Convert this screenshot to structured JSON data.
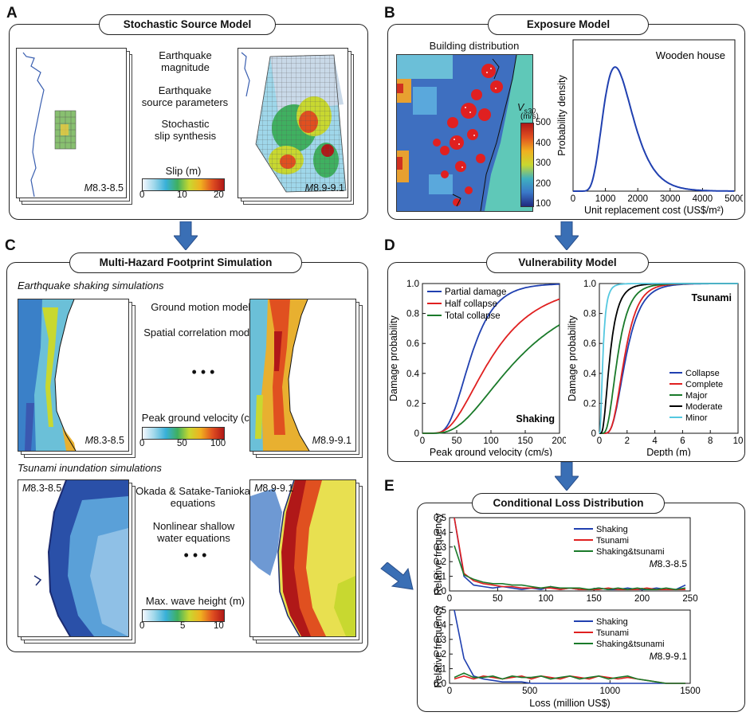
{
  "panels": {
    "A": {
      "letter": "A",
      "title": "Stochastic Source Model",
      "steps": [
        "Earthquake",
        "magnitude",
        "Earthquake",
        "source parameters",
        "Stochastic",
        "slip synthesis"
      ],
      "label_small": "8.3-8.5",
      "label_large": "8.9-9.1",
      "mag_prefix": "M",
      "colorbar": {
        "title": "Slip (m)",
        "ticks": [
          "0",
          "10",
          "20"
        ]
      }
    },
    "B": {
      "letter": "B",
      "title": "Exposure Model",
      "map_title": "Building distribution",
      "vs30_label": "V",
      "vs30_sub": "s30",
      "vs30_unit": "(m/s)",
      "vs30_ticks": [
        "500",
        "400",
        "300",
        "200",
        "100"
      ],
      "chart_title": "Wooden house"
    },
    "C": {
      "letter": "C",
      "title": "Multi-Hazard Footprint Simulation",
      "shaking_heading": "Earthquake shaking simulations",
      "shaking_steps": [
        "Ground motion models",
        "Spatial correlation models"
      ],
      "dots": "• • •",
      "pgv_colorbar": {
        "title": "Peak ground velocity (cm/s)",
        "ticks": [
          "0",
          "50",
          "100"
        ]
      },
      "tsunami_heading": "Tsunami inundation simulations",
      "tsunami_steps": [
        "Okada & Satake-Tanioka",
        "equations",
        "Nonlinear shallow",
        "water equations"
      ],
      "wave_colorbar": {
        "title": "Max. wave height (m)",
        "ticks": [
          "0",
          "5",
          "10"
        ]
      },
      "mag_prefix": "M",
      "label_small": "8.3-8.5",
      "label_large": "8.9-9.1"
    },
    "D": {
      "letter": "D",
      "title": "Vulnerability Model",
      "shaking_tag": "Shaking",
      "tsunami_tag": "Tsunami"
    },
    "E": {
      "letter": "E",
      "title": "Conditional Loss Distribution",
      "mag_prefix": "M",
      "label_small": "8.3-8.5",
      "label_large": "8.9-9.1"
    }
  },
  "colors": {
    "shaking": "#2040b0",
    "tsunami": "#e02020",
    "combined": "#1a7a2a",
    "moderate": "#000000",
    "minor": "#55c8e0",
    "arrow": "#3a6fb5"
  },
  "chart_data": [
    {
      "id": "lognormal-cost",
      "type": "line",
      "title": "Wooden house",
      "xlabel": "Unit replacement cost (US$/m²)",
      "ylabel": "Probability density",
      "xlim": [
        0,
        5000
      ],
      "x_ticks": [
        "0",
        "1000",
        "2000",
        "3000",
        "4000",
        "5000"
      ],
      "series": [
        {
          "name": "Wooden house",
          "mode": 1300,
          "x": [
            0,
            500,
            1000,
            1300,
            1600,
            2000,
            2500,
            3000,
            3500,
            4000,
            5000
          ],
          "y": [
            0,
            0.05,
            0.8,
            1.0,
            0.82,
            0.42,
            0.14,
            0.045,
            0.015,
            0.005,
            0
          ]
        }
      ]
    },
    {
      "id": "fragility-shaking",
      "type": "line",
      "xlabel": "Peak ground velocity (cm/s)",
      "ylabel": "Damage probability",
      "xlim": [
        0,
        200
      ],
      "ylim": [
        0,
        1
      ],
      "x_ticks": [
        "0",
        "50",
        "100",
        "150",
        "200"
      ],
      "y_ticks": [
        "0",
        "0.2",
        "0.4",
        "0.6",
        "0.8",
        "1.0"
      ],
      "series": [
        {
          "name": "Partial damage",
          "median": 70,
          "beta": 0.4
        },
        {
          "name": "Half collapse",
          "median": 100,
          "beta": 0.55
        },
        {
          "name": "Total collapse",
          "median": 140,
          "beta": 0.6
        }
      ]
    },
    {
      "id": "fragility-tsunami",
      "type": "line",
      "xlabel": "Depth (m)",
      "ylabel": "Damage probability",
      "xlim": [
        0,
        10
      ],
      "ylim": [
        0,
        1
      ],
      "x_ticks": [
        "0",
        "2",
        "4",
        "6",
        "8",
        "10"
      ],
      "y_ticks": [
        "0",
        "0.2",
        "0.4",
        "0.6",
        "0.8",
        "1.0"
      ],
      "series": [
        {
          "name": "Collapse",
          "median": 1.9,
          "beta": 0.45
        },
        {
          "name": "Complete",
          "median": 1.8,
          "beta": 0.42
        },
        {
          "name": "Major",
          "median": 1.3,
          "beta": 0.5
        },
        {
          "name": "Moderate",
          "median": 0.75,
          "beta": 0.6
        },
        {
          "name": "Minor",
          "median": 0.25,
          "beta": 0.7
        }
      ]
    },
    {
      "id": "loss-small",
      "type": "line",
      "xlabel": "",
      "ylabel": "Relative frequency",
      "xlim": [
        0,
        250
      ],
      "ylim": [
        0,
        0.5
      ],
      "x_ticks": [
        "0",
        "50",
        "100",
        "150",
        "200",
        "250"
      ],
      "y_ticks": [
        "0.0",
        "0.1",
        "0.2",
        "0.3",
        "0.4",
        "0.5"
      ],
      "x": [
        5,
        15,
        25,
        35,
        45,
        55,
        65,
        75,
        85,
        95,
        105,
        115,
        125,
        135,
        145,
        155,
        165,
        175,
        185,
        195,
        205,
        215,
        225,
        235,
        245
      ],
      "series": [
        {
          "name": "Shaking",
          "values": [
            0.5,
            0.1,
            0.04,
            0.03,
            0.02,
            0.03,
            0.02,
            0.01,
            0.02,
            0.01,
            0.03,
            0.01,
            0.02,
            0.01,
            0.01,
            0.02,
            0.01,
            0.01,
            0.02,
            0.01,
            0.01,
            0.02,
            0.01,
            0.01,
            0.04
          ]
        },
        {
          "name": "Tsunami",
          "values": [
            0.5,
            0.12,
            0.07,
            0.05,
            0.04,
            0.03,
            0.03,
            0.02,
            0.02,
            0.02,
            0.02,
            0.01,
            0.02,
            0.01,
            0.01,
            0.01,
            0.02,
            0.01,
            0.01,
            0.01,
            0.02,
            0.01,
            0.01,
            0.01,
            0.01
          ]
        },
        {
          "name": "Shaking&tsunami",
          "values": [
            0.31,
            0.11,
            0.08,
            0.06,
            0.05,
            0.05,
            0.04,
            0.04,
            0.03,
            0.02,
            0.03,
            0.02,
            0.02,
            0.02,
            0.01,
            0.02,
            0.01,
            0.02,
            0.01,
            0.02,
            0.01,
            0.01,
            0.02,
            0.01,
            0.02
          ]
        }
      ]
    },
    {
      "id": "loss-large",
      "type": "line",
      "xlabel": "Loss (million US$)",
      "ylabel": "Relative frequency",
      "xlim": [
        0,
        1500
      ],
      "ylim": [
        0,
        0.5
      ],
      "x_ticks": [
        "0",
        "500",
        "1000",
        "1500"
      ],
      "y_ticks": [
        "0.0",
        "0.1",
        "0.2",
        "0.3",
        "0.4",
        "0.5"
      ],
      "x": [
        30,
        90,
        150,
        210,
        270,
        330,
        390,
        450,
        510,
        570,
        630,
        690,
        750,
        810,
        870,
        930,
        990,
        1050,
        1110,
        1170,
        1230,
        1290,
        1350,
        1410,
        1470
      ],
      "series": [
        {
          "name": "Shaking",
          "values": [
            0.5,
            0.17,
            0.05,
            0.03,
            0.02,
            0.01,
            0.01,
            0.01,
            0.0,
            0.0,
            0.0,
            0.0,
            0.0,
            0.0,
            0.0,
            0.0,
            0.0,
            0.0,
            0.0,
            0.0,
            0.0,
            0.0,
            0.0,
            0.0,
            0.0
          ]
        },
        {
          "name": "Tsunami",
          "values": [
            0.03,
            0.05,
            0.03,
            0.05,
            0.04,
            0.03,
            0.04,
            0.05,
            0.03,
            0.05,
            0.04,
            0.03,
            0.05,
            0.04,
            0.03,
            0.05,
            0.04,
            0.03,
            0.04,
            0.03,
            0.02,
            0.01,
            0.0,
            0.0,
            0.0
          ]
        },
        {
          "name": "Shaking&tsunami",
          "values": [
            0.04,
            0.07,
            0.04,
            0.04,
            0.05,
            0.03,
            0.05,
            0.04,
            0.04,
            0.05,
            0.03,
            0.04,
            0.05,
            0.03,
            0.04,
            0.05,
            0.03,
            0.04,
            0.05,
            0.03,
            0.02,
            0.01,
            0.0,
            0.0,
            0.0
          ]
        }
      ]
    }
  ]
}
